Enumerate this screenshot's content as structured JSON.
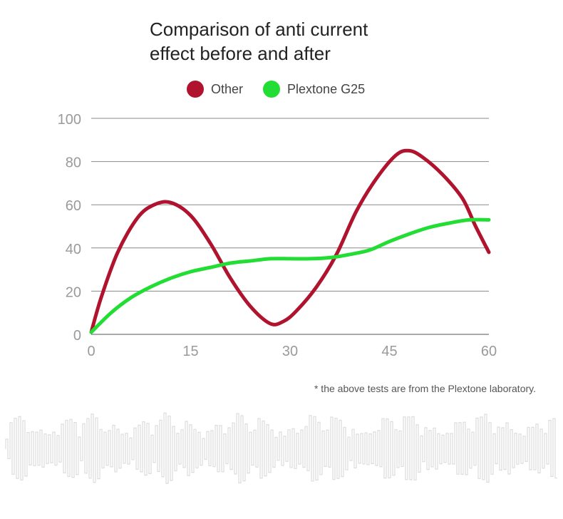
{
  "chart_data": {
    "type": "line",
    "title_lines": [
      "Comparison of anti current",
      "effect before and after"
    ],
    "legend": {
      "placement": "top"
    },
    "xlabel": "",
    "ylabel": "",
    "xlim": [
      0,
      60
    ],
    "ylim": [
      0,
      100
    ],
    "xticks": [
      0,
      15,
      30,
      45,
      60
    ],
    "yticks": [
      0,
      20,
      40,
      60,
      80,
      100
    ],
    "grid": true,
    "series": [
      {
        "name": "Other",
        "color": "#b0132e",
        "x": [
          0,
          1.5,
          4,
          7,
          9.5,
          12,
          15,
          18,
          21,
          24,
          27,
          29,
          31,
          34,
          37,
          40,
          43,
          46,
          48,
          50,
          53,
          56,
          58,
          60
        ],
        "y": [
          1,
          17,
          38,
          54,
          60,
          61,
          55,
          42,
          26,
          13,
          5,
          6,
          11,
          22,
          37,
          57,
          72,
          83,
          85,
          82,
          74,
          63,
          50,
          38
        ]
      },
      {
        "name": "Plextone G25",
        "color": "#22dd33",
        "x": [
          0,
          3,
          6,
          9,
          12,
          15,
          18,
          21,
          24,
          27,
          30,
          33,
          36,
          39,
          42,
          45,
          48,
          51,
          54,
          57,
          60
        ],
        "y": [
          1,
          10,
          17,
          22,
          26,
          29,
          31,
          33,
          34,
          35,
          35,
          35,
          35.5,
          37,
          39,
          43,
          46.5,
          49.5,
          51.5,
          53,
          53
        ]
      }
    ]
  },
  "footnote": "* the above tests are from the Plextone laboratory."
}
